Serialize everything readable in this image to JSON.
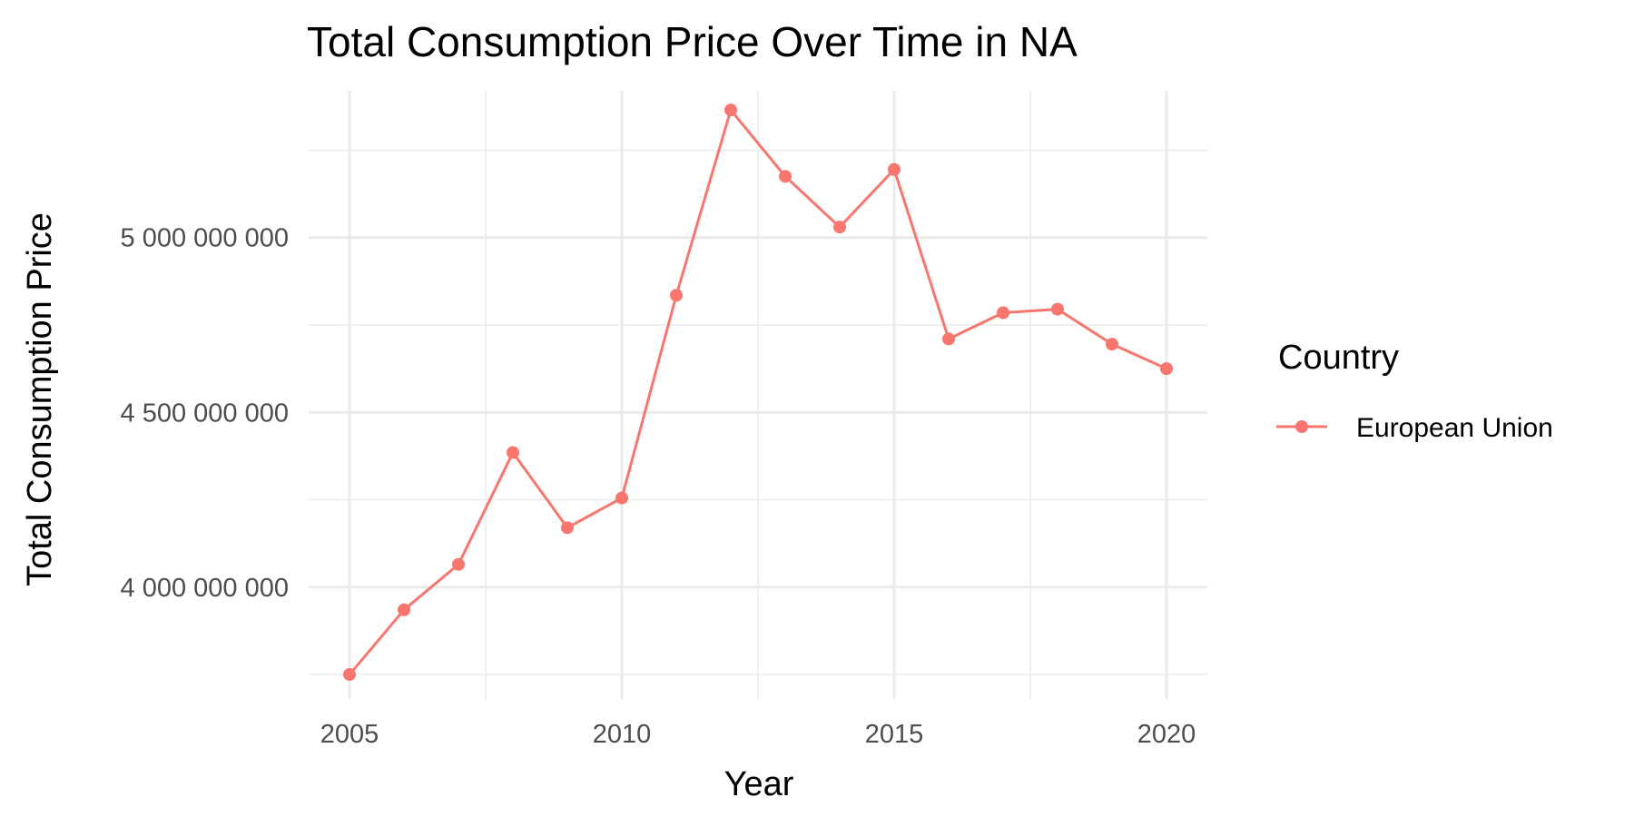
{
  "chart_data": {
    "type": "line",
    "title": "Total Consumption Price Over Time in NA",
    "xlabel": "Year",
    "ylabel": "Total Consumption Price",
    "x": [
      2005,
      2006,
      2007,
      2008,
      2009,
      2010,
      2011,
      2012,
      2013,
      2014,
      2015,
      2016,
      2017,
      2018,
      2019,
      2020
    ],
    "series": [
      {
        "name": "European Union",
        "color": "#F8766D",
        "values": [
          3750000000,
          3935000000,
          4065000000,
          4385000000,
          4170000000,
          4255000000,
          4835000000,
          5365000000,
          5175000000,
          5030000000,
          5195000000,
          4710000000,
          4785000000,
          4795000000,
          4695000000,
          4625000000
        ]
      }
    ],
    "xlim": [
      2004.25,
      2020.75
    ],
    "ylim": [
      3680000000,
      5420000000
    ],
    "x_ticks": [
      2005,
      2010,
      2015,
      2020
    ],
    "x_tick_labels": [
      "2005",
      "2010",
      "2015",
      "2020"
    ],
    "y_ticks": [
      4000000000,
      4500000000,
      5000000000
    ],
    "y_tick_labels": [
      "4 000 000 000",
      "4 500 000 000",
      "5 000 000 000"
    ],
    "grid": true,
    "legend": {
      "title": "Country",
      "position": "right"
    }
  }
}
